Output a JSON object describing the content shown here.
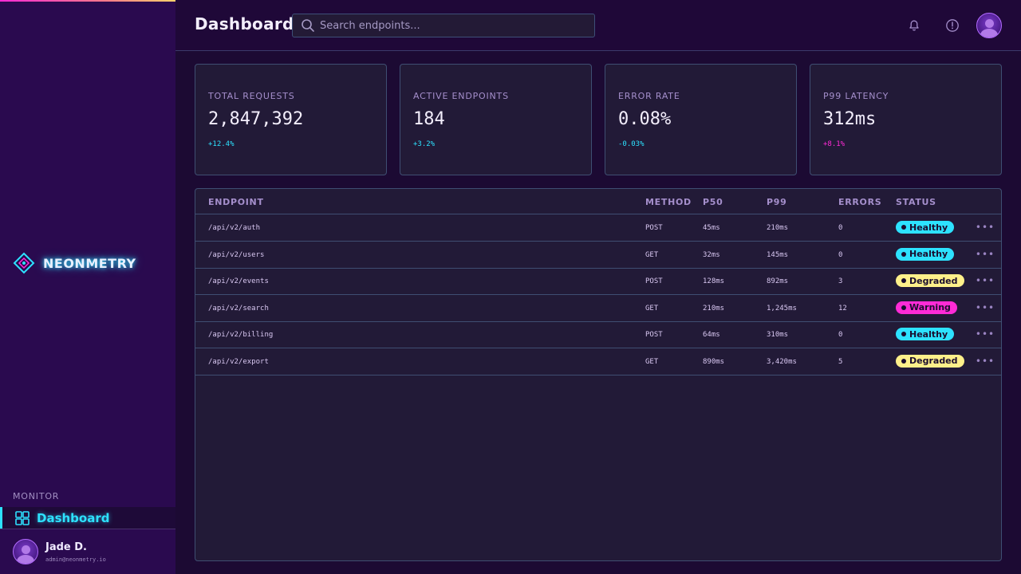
{
  "colors": {
    "accent_cyan": "#2de2ff",
    "accent_magenta": "#ff2bd6",
    "accent_yellow": "#fff08a",
    "delta_positive": "#2de2ff",
    "delta_negative": "#ff2bd6"
  },
  "sidebar": {
    "brand": {
      "name": "NEONMETRY",
      "icon": "diamond-logo-icon"
    },
    "section_label": "MONITOR",
    "nav": [
      {
        "label": "Dashboard",
        "icon": "grid-icon",
        "active": true
      }
    ],
    "user": {
      "name": "Jade D.",
      "email": "admin@neonmetry.io"
    }
  },
  "header": {
    "title": "Dashboard",
    "search": {
      "placeholder": "Search endpoints...",
      "value": ""
    },
    "icons": [
      "bell-icon",
      "info-icon"
    ]
  },
  "kpis": [
    {
      "label": "TOTAL REQUESTS",
      "value": "2,847,392",
      "delta": "+12.4%",
      "trend": "positive"
    },
    {
      "label": "ACTIVE ENDPOINTS",
      "value": "184",
      "delta": "+3.2%",
      "trend": "positive"
    },
    {
      "label": "ERROR RATE",
      "value": "0.08%",
      "delta": "-0.03%",
      "trend": "positive"
    },
    {
      "label": "P99 LATENCY",
      "value": "312ms",
      "delta": "+8.1%",
      "trend": "negative"
    }
  ],
  "table": {
    "columns": [
      "ENDPOINT",
      "METHOD",
      "P50",
      "P99",
      "ERRORS",
      "STATUS"
    ],
    "rows": [
      {
        "endpoint": "/api/v2/auth",
        "method": "POST",
        "p50": "45ms",
        "p99": "210ms",
        "errors": "0",
        "status": "Healthy"
      },
      {
        "endpoint": "/api/v2/users",
        "method": "GET",
        "p50": "32ms",
        "p99": "145ms",
        "errors": "0",
        "status": "Healthy"
      },
      {
        "endpoint": "/api/v2/events",
        "method": "POST",
        "p50": "128ms",
        "p99": "892ms",
        "errors": "3",
        "status": "Degraded"
      },
      {
        "endpoint": "/api/v2/search",
        "method": "GET",
        "p50": "210ms",
        "p99": "1,245ms",
        "errors": "12",
        "status": "Warning"
      },
      {
        "endpoint": "/api/v2/billing",
        "method": "POST",
        "p50": "64ms",
        "p99": "310ms",
        "errors": "0",
        "status": "Healthy"
      },
      {
        "endpoint": "/api/v2/export",
        "method": "GET",
        "p50": "890ms",
        "p99": "3,420ms",
        "errors": "5",
        "status": "Degraded"
      }
    ],
    "status_colors": {
      "Healthy": "#2de2ff",
      "Degraded": "#fff08a",
      "Warning": "#ff2bd6"
    },
    "row_menu_icon": "more-horizontal-icon"
  }
}
